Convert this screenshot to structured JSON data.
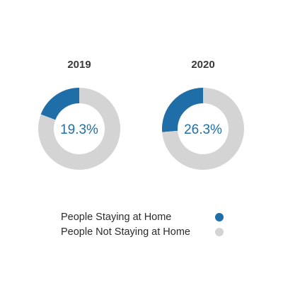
{
  "chart_data": {
    "type": "pie",
    "subtype": "donut",
    "charts": [
      {
        "title": "2019",
        "center_label": "19.3%",
        "slices": [
          {
            "name": "People Staying at Home",
            "value": 19.3
          },
          {
            "name": "People Not Staying at Home",
            "value": 80.7
          }
        ]
      },
      {
        "title": "2020",
        "center_label": "26.3%",
        "slices": [
          {
            "name": "People Staying at Home",
            "value": 26.3
          },
          {
            "name": "People Not Staying at Home",
            "value": 73.7
          }
        ]
      }
    ],
    "legend": {
      "placement": "bottom-center",
      "items": [
        {
          "label": "People Staying at Home",
          "color": "#1f6ea8"
        },
        {
          "label": "People Not Staying at Home",
          "color": "#d4d4d4"
        }
      ]
    },
    "colors": {
      "staying": "#1f6ea8",
      "not_staying": "#d4d4d4"
    }
  }
}
